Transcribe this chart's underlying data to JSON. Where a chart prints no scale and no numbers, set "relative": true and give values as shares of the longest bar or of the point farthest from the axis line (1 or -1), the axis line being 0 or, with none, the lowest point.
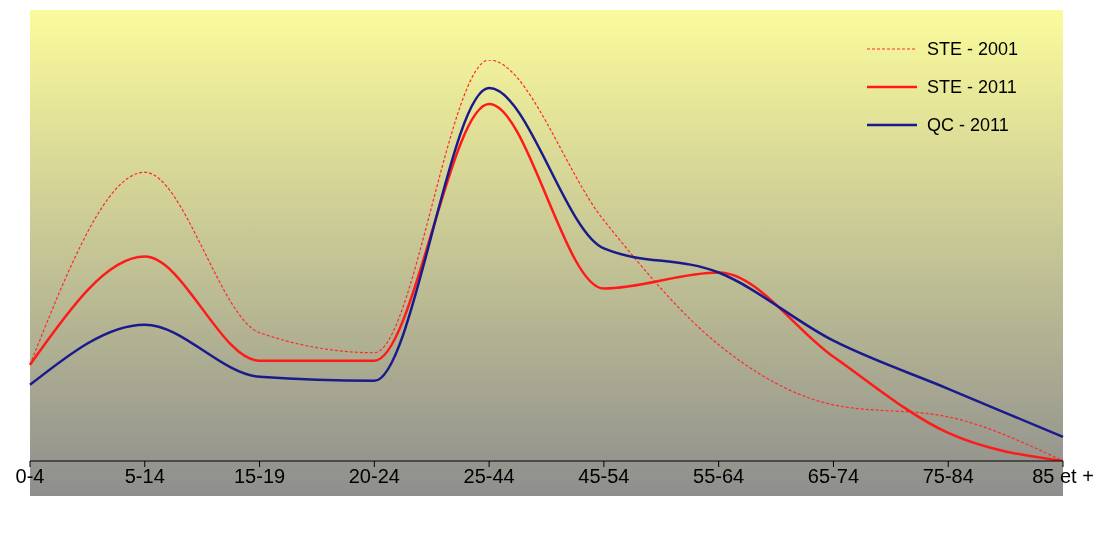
{
  "chart_data": {
    "type": "line",
    "relative": true,
    "categories": [
      "0-4",
      "5-14",
      "15-19",
      "20-24",
      "25-44",
      "45-54",
      "55-64",
      "65-74",
      "75-84",
      "85 et +"
    ],
    "series": [
      {
        "name": "STE - 2001",
        "color": "#ff2a2a",
        "line_style": "dotted",
        "values": [
          0.24,
          0.72,
          0.32,
          0.27,
          1,
          0.6,
          0.29,
          0.14,
          0.11,
          0
        ]
      },
      {
        "name": "STE - 2011",
        "color": "#ff1a1a",
        "line_style": "solid",
        "values": [
          0.24,
          0.51,
          0.25,
          0.25,
          0.89,
          0.43,
          0.47,
          0.26,
          0.07,
          0
        ]
      },
      {
        "name": "QC - 2011",
        "color": "#1a1a8c",
        "line_style": "solid",
        "values": [
          0.19,
          0.34,
          0.21,
          0.2,
          0.93,
          0.53,
          0.47,
          0.3,
          0.18,
          0.06
        ]
      }
    ],
    "legend": "top right",
    "grid": false,
    "marker": "none"
  }
}
